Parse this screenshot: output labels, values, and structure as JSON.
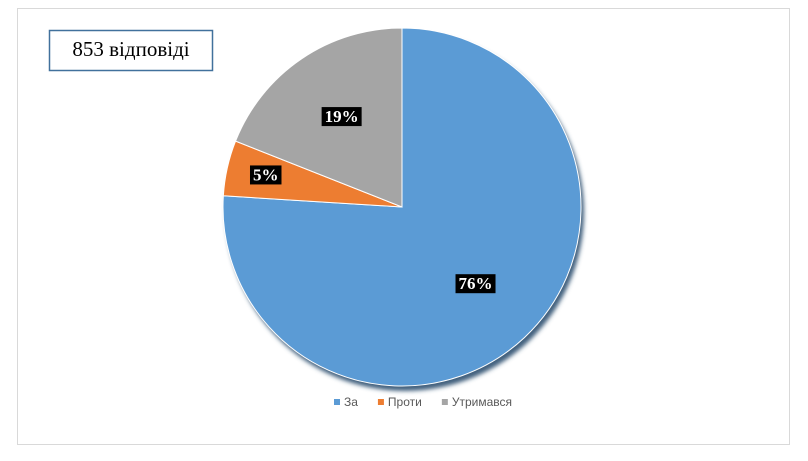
{
  "chart_data": {
    "type": "pie",
    "title": "853 відповіді",
    "categories": [
      "За",
      "Проти",
      "Утримався"
    ],
    "values": [
      76,
      5,
      19
    ],
    "value_labels": [
      "76%",
      "5%",
      "19%"
    ],
    "colors": [
      "#5b9bd5",
      "#ed7d31",
      "#a5a5a5"
    ],
    "legend": "bottom"
  }
}
